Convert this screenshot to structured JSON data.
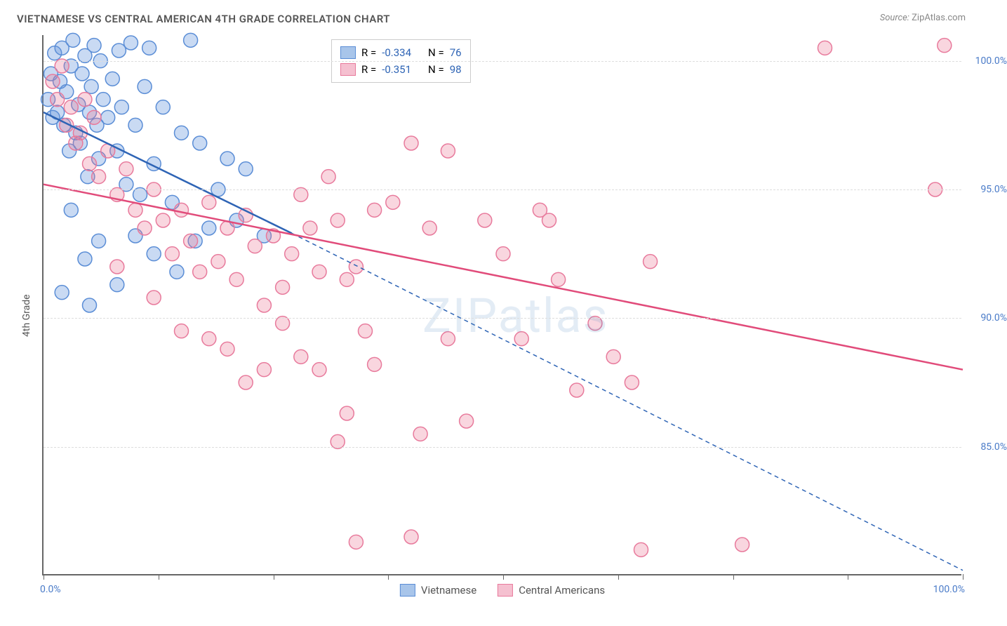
{
  "title": "VIETNAMESE VS CENTRAL AMERICAN 4TH GRADE CORRELATION CHART",
  "source_prefix": "Source: ",
  "source_name": "ZipAtlas.com",
  "y_axis_title": "4th Grade",
  "watermark": "ZIPatlas",
  "x_axis": {
    "min_label": "0.0%",
    "max_label": "100.0%",
    "min": 0,
    "max": 100,
    "tick_positions": [
      0,
      12.5,
      25,
      37.5,
      50,
      62.5,
      75,
      87.5,
      100
    ]
  },
  "y_axis": {
    "min": 80,
    "max": 101,
    "ticks": [
      {
        "value": 100,
        "label": "100.0%"
      },
      {
        "value": 95,
        "label": "95.0%"
      },
      {
        "value": 90,
        "label": "90.0%"
      },
      {
        "value": 85,
        "label": "85.0%"
      }
    ]
  },
  "series": [
    {
      "name": "Vietnamese",
      "color_fill": "rgba(100,150,220,0.35)",
      "color_stroke": "#5a8dd6",
      "line_color": "#2e64b5",
      "swatch_fill": "#a8c5ea",
      "swatch_border": "#5a8dd6",
      "stats": {
        "R_label": "R =",
        "R": "-0.334",
        "N_label": "N =",
        "N": "76"
      },
      "trend": {
        "solid": {
          "x1": 0,
          "y1": 98.0,
          "x2": 27,
          "y2": 93.3
        },
        "dashed": {
          "x1": 27,
          "y1": 93.3,
          "x2": 100,
          "y2": 80.2
        }
      },
      "points": [
        [
          0.5,
          98.5
        ],
        [
          0.8,
          99.5
        ],
        [
          1.0,
          97.8
        ],
        [
          1.2,
          100.3
        ],
        [
          1.5,
          98.0
        ],
        [
          1.8,
          99.2
        ],
        [
          2.0,
          100.5
        ],
        [
          2.2,
          97.5
        ],
        [
          2.5,
          98.8
        ],
        [
          2.8,
          96.5
        ],
        [
          3.0,
          99.8
        ],
        [
          3.2,
          100.8
        ],
        [
          3.5,
          97.2
        ],
        [
          3.8,
          98.3
        ],
        [
          4.0,
          96.8
        ],
        [
          4.2,
          99.5
        ],
        [
          4.5,
          100.2
        ],
        [
          4.8,
          95.5
        ],
        [
          5.0,
          98.0
        ],
        [
          5.2,
          99.0
        ],
        [
          5.5,
          100.6
        ],
        [
          5.8,
          97.5
        ],
        [
          6.0,
          96.2
        ],
        [
          6.2,
          100.0
        ],
        [
          6.5,
          98.5
        ],
        [
          7.0,
          97.8
        ],
        [
          7.5,
          99.3
        ],
        [
          8.0,
          96.5
        ],
        [
          8.2,
          100.4
        ],
        [
          8.5,
          98.2
        ],
        [
          9.0,
          95.2
        ],
        [
          9.5,
          100.7
        ],
        [
          10.0,
          97.5
        ],
        [
          10.5,
          94.8
        ],
        [
          11.0,
          99.0
        ],
        [
          11.5,
          100.5
        ],
        [
          12.0,
          96.0
        ],
        [
          13.0,
          98.2
        ],
        [
          14.0,
          94.5
        ],
        [
          15.0,
          97.2
        ],
        [
          16.0,
          100.8
        ],
        [
          17.0,
          96.8
        ],
        [
          18.0,
          93.5
        ],
        [
          19.0,
          95.0
        ],
        [
          20.0,
          96.2
        ],
        [
          21.0,
          93.8
        ],
        [
          8.0,
          91.3
        ],
        [
          5.0,
          90.5
        ],
        [
          3.0,
          94.2
        ],
        [
          6.0,
          93.0
        ],
        [
          10.0,
          93.2
        ],
        [
          12.0,
          92.5
        ],
        [
          14.5,
          91.8
        ],
        [
          16.5,
          93.0
        ],
        [
          22.0,
          95.8
        ],
        [
          24.0,
          93.2
        ],
        [
          2.0,
          91.0
        ],
        [
          4.5,
          92.3
        ]
      ]
    },
    {
      "name": "Central Americans",
      "color_fill": "rgba(235,120,150,0.30)",
      "color_stroke": "#e87a9c",
      "line_color": "#e14b7a",
      "swatch_fill": "#f5c0d0",
      "swatch_border": "#e87a9c",
      "stats": {
        "R_label": "R =",
        "R": "-0.351",
        "N_label": "N =",
        "N": "98"
      },
      "trend": {
        "solid": {
          "x1": 0,
          "y1": 95.2,
          "x2": 100,
          "y2": 88.0
        }
      },
      "points": [
        [
          1.0,
          99.2
        ],
        [
          1.5,
          98.5
        ],
        [
          2.0,
          99.8
        ],
        [
          2.5,
          97.5
        ],
        [
          3.0,
          98.2
        ],
        [
          3.5,
          96.8
        ],
        [
          4.0,
          97.2
        ],
        [
          4.5,
          98.5
        ],
        [
          5.0,
          96.0
        ],
        [
          5.5,
          97.8
        ],
        [
          6.0,
          95.5
        ],
        [
          7.0,
          96.5
        ],
        [
          8.0,
          94.8
        ],
        [
          9.0,
          95.8
        ],
        [
          10.0,
          94.2
        ],
        [
          11.0,
          93.5
        ],
        [
          12.0,
          95.0
        ],
        [
          13.0,
          93.8
        ],
        [
          14.0,
          92.5
        ],
        [
          15.0,
          94.2
        ],
        [
          16.0,
          93.0
        ],
        [
          17.0,
          91.8
        ],
        [
          18.0,
          94.5
        ],
        [
          19.0,
          92.2
        ],
        [
          20.0,
          93.5
        ],
        [
          21.0,
          91.5
        ],
        [
          22.0,
          94.0
        ],
        [
          23.0,
          92.8
        ],
        [
          24.0,
          90.5
        ],
        [
          25.0,
          93.2
        ],
        [
          26.0,
          91.2
        ],
        [
          27.0,
          92.5
        ],
        [
          28.0,
          94.8
        ],
        [
          29.0,
          93.5
        ],
        [
          30.0,
          91.8
        ],
        [
          31.0,
          95.5
        ],
        [
          32.0,
          93.8
        ],
        [
          33.0,
          91.5
        ],
        [
          34.0,
          92.0
        ],
        [
          35.0,
          89.5
        ],
        [
          36.0,
          94.2
        ],
        [
          38.0,
          94.5
        ],
        [
          40.0,
          96.8
        ],
        [
          42.0,
          93.5
        ],
        [
          41.0,
          85.5
        ],
        [
          32.0,
          85.2
        ],
        [
          34.0,
          81.3
        ],
        [
          40.0,
          81.5
        ],
        [
          44.0,
          96.5
        ],
        [
          46.0,
          86.0
        ],
        [
          48.0,
          93.8
        ],
        [
          50.0,
          92.5
        ],
        [
          52.0,
          89.2
        ],
        [
          54.0,
          94.2
        ],
        [
          56.0,
          91.5
        ],
        [
          58.0,
          87.2
        ],
        [
          60.0,
          89.8
        ],
        [
          62.0,
          88.5
        ],
        [
          64.0,
          87.5
        ],
        [
          65.0,
          81.0
        ],
        [
          66.0,
          92.2
        ],
        [
          76.0,
          81.2
        ],
        [
          85.0,
          100.5
        ],
        [
          98.0,
          100.6
        ],
        [
          97.0,
          95.0
        ],
        [
          24.0,
          88.0
        ],
        [
          28.0,
          88.5
        ],
        [
          18.0,
          89.2
        ],
        [
          20.0,
          88.8
        ],
        [
          15.0,
          89.5
        ],
        [
          44.0,
          89.2
        ],
        [
          36.0,
          88.2
        ],
        [
          26.0,
          89.8
        ],
        [
          30.0,
          88.0
        ],
        [
          22.0,
          87.5
        ],
        [
          55.0,
          93.8
        ],
        [
          33.0,
          86.3
        ],
        [
          12.0,
          90.8
        ],
        [
          8.0,
          92.0
        ]
      ]
    }
  ],
  "marker_radius": 10,
  "marker_stroke_width": 1.5,
  "line_width_solid": 2.5,
  "line_width_dashed": 1.5,
  "dash_pattern": "6,5"
}
